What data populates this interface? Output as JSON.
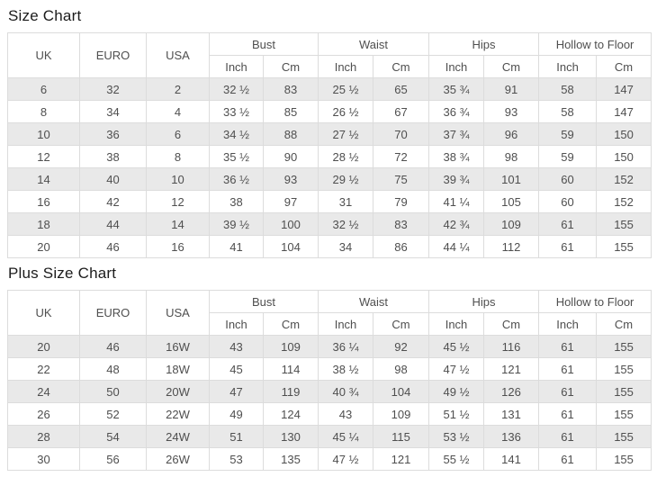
{
  "colors": {
    "stripe_row": "#e9e9e9",
    "table_border": "#dcdcdc",
    "cell_text": "#4f4f4f",
    "title_text": "#1c1c1c",
    "background": "#ffffff"
  },
  "tables": [
    {
      "title": "Size Chart",
      "simple_columns": [
        "UK",
        "EURO",
        "USA"
      ],
      "group_columns": [
        {
          "label": "Bust",
          "sub": [
            "Inch",
            "Cm"
          ]
        },
        {
          "label": "Waist",
          "sub": [
            "Inch",
            "Cm"
          ]
        },
        {
          "label": "Hips",
          "sub": [
            "Inch",
            "Cm"
          ]
        },
        {
          "label": "Hollow to Floor",
          "sub": [
            "Inch",
            "Cm"
          ]
        }
      ],
      "rows": [
        [
          "6",
          "32",
          "2",
          "32 ½",
          "83",
          "25 ½",
          "65",
          "35 ¾",
          "91",
          "58",
          "147"
        ],
        [
          "8",
          "34",
          "4",
          "33 ½",
          "85",
          "26 ½",
          "67",
          "36 ¾",
          "93",
          "58",
          "147"
        ],
        [
          "10",
          "36",
          "6",
          "34 ½",
          "88",
          "27 ½",
          "70",
          "37 ¾",
          "96",
          "59",
          "150"
        ],
        [
          "12",
          "38",
          "8",
          "35 ½",
          "90",
          "28 ½",
          "72",
          "38 ¾",
          "98",
          "59",
          "150"
        ],
        [
          "14",
          "40",
          "10",
          "36 ½",
          "93",
          "29 ½",
          "75",
          "39 ¾",
          "101",
          "60",
          "152"
        ],
        [
          "16",
          "42",
          "12",
          "38",
          "97",
          "31",
          "79",
          "41 ¼",
          "105",
          "60",
          "152"
        ],
        [
          "18",
          "44",
          "14",
          "39 ½",
          "100",
          "32 ½",
          "83",
          "42 ¾",
          "109",
          "61",
          "155"
        ],
        [
          "20",
          "46",
          "16",
          "41",
          "104",
          "34",
          "86",
          "44 ¼",
          "112",
          "61",
          "155"
        ]
      ]
    },
    {
      "title": "Plus Size Chart",
      "simple_columns": [
        "UK",
        "EURO",
        "USA"
      ],
      "group_columns": [
        {
          "label": "Bust",
          "sub": [
            "Inch",
            "Cm"
          ]
        },
        {
          "label": "Waist",
          "sub": [
            "Inch",
            "Cm"
          ]
        },
        {
          "label": "Hips",
          "sub": [
            "Inch",
            "Cm"
          ]
        },
        {
          "label": "Hollow to Floor",
          "sub": [
            "Inch",
            "Cm"
          ]
        }
      ],
      "rows": [
        [
          "20",
          "46",
          "16W",
          "43",
          "109",
          "36 ¼",
          "92",
          "45 ½",
          "116",
          "61",
          "155"
        ],
        [
          "22",
          "48",
          "18W",
          "45",
          "114",
          "38 ½",
          "98",
          "47 ½",
          "121",
          "61",
          "155"
        ],
        [
          "24",
          "50",
          "20W",
          "47",
          "119",
          "40 ¾",
          "104",
          "49 ½",
          "126",
          "61",
          "155"
        ],
        [
          "26",
          "52",
          "22W",
          "49",
          "124",
          "43",
          "109",
          "51 ½",
          "131",
          "61",
          "155"
        ],
        [
          "28",
          "54",
          "24W",
          "51",
          "130",
          "45 ¼",
          "115",
          "53 ½",
          "136",
          "61",
          "155"
        ],
        [
          "30",
          "56",
          "26W",
          "53",
          "135",
          "47 ½",
          "121",
          "55 ½",
          "141",
          "61",
          "155"
        ]
      ]
    }
  ]
}
